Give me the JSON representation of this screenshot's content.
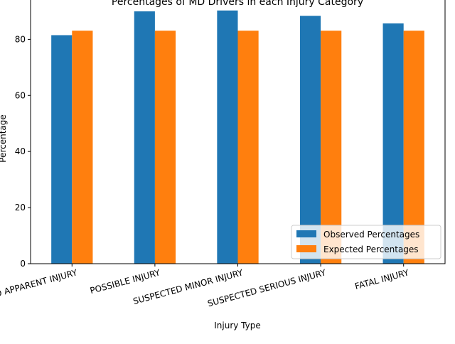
{
  "chart_data": {
    "type": "bar",
    "title": "Percentages of MD Drivers in each Injury Category",
    "xlabel": "Injury Type",
    "ylabel": "Percentage",
    "categories": [
      "NO APPARENT INJURY",
      "POSSIBLE INJURY",
      "SUSPECTED MINOR INJURY",
      "SUSPECTED SERIOUS INJURY",
      "FATAL INJURY"
    ],
    "series": [
      {
        "name": "Observed Percentages",
        "color": "#1f77b4",
        "values": [
          81.5,
          90.0,
          90.3,
          88.4,
          85.7
        ]
      },
      {
        "name": "Expected Percentages",
        "color": "#ff7f0e",
        "values": [
          83.1,
          83.1,
          83.1,
          83.1,
          83.1
        ]
      }
    ],
    "yticks": [
      0,
      20,
      40,
      60,
      80
    ],
    "ylim": [
      0,
      94.8
    ],
    "grid": false,
    "legend_position": "lower-right"
  }
}
